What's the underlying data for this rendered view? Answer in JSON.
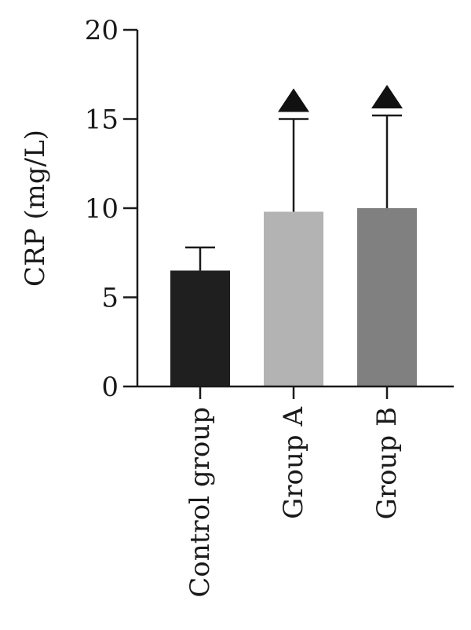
{
  "chart_data": {
    "type": "bar",
    "title": "",
    "xlabel": "",
    "ylabel": "CRP (mg/L)",
    "ylim": [
      0,
      20
    ],
    "yticks": [
      "0",
      "5",
      "10",
      "15",
      "20"
    ],
    "categories": [
      "Control group",
      "Group A",
      "Group B"
    ],
    "series": [
      {
        "values": [
          6.5,
          9.8,
          10.0
        ],
        "error_upper": [
          7.8,
          15.0,
          15.2
        ],
        "colors": [
          "#1f1f1f",
          "#b3b3b3",
          "#808080"
        ]
      }
    ],
    "significance_markers": [
      {
        "category": "Group A",
        "symbol": "triangle"
      },
      {
        "category": "Group B",
        "symbol": "triangle"
      }
    ],
    "grid": false,
    "legend": "none"
  }
}
